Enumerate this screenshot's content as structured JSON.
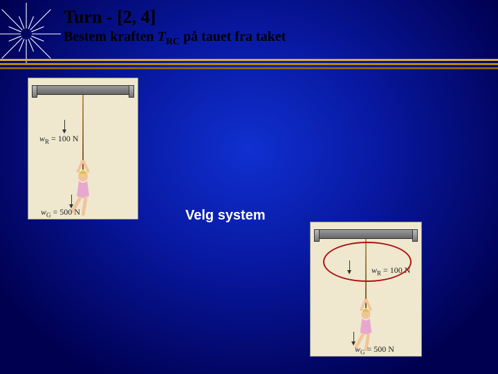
{
  "header": {
    "title": "Turn   -   [2, 4]",
    "subtitle_prefix": "Bestem kraften ",
    "subtitle_var": "T",
    "subtitle_sub": "RC",
    "subtitle_suffix": " på tauet fra taket"
  },
  "rules": {
    "colors": [
      "#d4af37",
      "#b88a00",
      "#8c6400"
    ]
  },
  "caption": "Velg system",
  "labels": {
    "wr_var": "w",
    "wr_sub": "R",
    "wr_val": " = 100 N",
    "wg_var": "w",
    "wg_sub": "G",
    "wg_val": " = 500 N"
  },
  "figure": {
    "background": "#efe8ce",
    "bar_color": "#808080",
    "rope_color": "#8a6a38",
    "skin_color": "#f2c49a",
    "leotard_color": "#e7a8cf",
    "hair_color": "#e0c24a",
    "oval_color": "#b01010"
  },
  "starburst": {
    "stroke": "#ffffff",
    "rays": 16,
    "outer": 50,
    "inner": 8
  }
}
